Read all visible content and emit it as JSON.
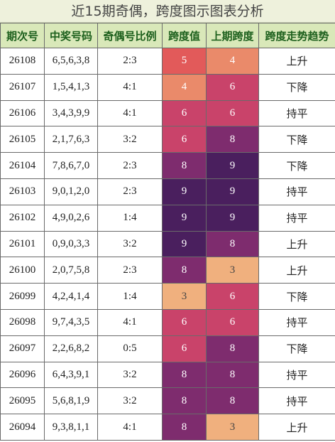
{
  "title": "近15期奇偶，跨度图示图表分析",
  "headers": [
    "期次号",
    "中奖号码",
    "奇偶号比例",
    "跨度值",
    "上期跨度",
    "跨度走势趋势"
  ],
  "colors": {
    "3": "#f0b07e",
    "4": "#ea8a6a",
    "5": "#e25a5a",
    "6": "#c9436a",
    "8": "#7e2c6e",
    "9": "#4a1f5e"
  },
  "rows": [
    {
      "period": "26108",
      "numbers": "6,5,6,3,8",
      "ratio": "2:3",
      "span": "5",
      "prev": "4",
      "trend": "上升"
    },
    {
      "period": "26107",
      "numbers": "1,5,4,1,3",
      "ratio": "4:1",
      "span": "4",
      "prev": "6",
      "trend": "下降"
    },
    {
      "period": "26106",
      "numbers": "3,4,3,9,9",
      "ratio": "4:1",
      "span": "6",
      "prev": "6",
      "trend": "持平"
    },
    {
      "period": "26105",
      "numbers": "2,1,7,6,3",
      "ratio": "3:2",
      "span": "6",
      "prev": "8",
      "trend": "下降"
    },
    {
      "period": "26104",
      "numbers": "7,8,6,7,0",
      "ratio": "2:3",
      "span": "8",
      "prev": "9",
      "trend": "下降"
    },
    {
      "period": "26103",
      "numbers": "9,0,1,2,0",
      "ratio": "2:3",
      "span": "9",
      "prev": "9",
      "trend": "持平"
    },
    {
      "period": "26102",
      "numbers": "4,9,0,2,6",
      "ratio": "1:4",
      "span": "9",
      "prev": "9",
      "trend": "持平"
    },
    {
      "period": "26101",
      "numbers": "0,9,0,3,3",
      "ratio": "3:2",
      "span": "9",
      "prev": "8",
      "trend": "上升"
    },
    {
      "period": "26100",
      "numbers": "2,0,7,5,8",
      "ratio": "2:3",
      "span": "8",
      "prev": "3",
      "trend": "上升"
    },
    {
      "period": "26099",
      "numbers": "4,2,4,1,4",
      "ratio": "1:4",
      "span": "3",
      "prev": "6",
      "trend": "下降"
    },
    {
      "period": "26098",
      "numbers": "9,7,4,3,5",
      "ratio": "4:1",
      "span": "6",
      "prev": "6",
      "trend": "持平"
    },
    {
      "period": "26097",
      "numbers": "2,2,6,8,2",
      "ratio": "0:5",
      "span": "6",
      "prev": "8",
      "trend": "下降"
    },
    {
      "period": "26096",
      "numbers": "6,4,3,9,1",
      "ratio": "3:2",
      "span": "8",
      "prev": "8",
      "trend": "持平"
    },
    {
      "period": "26095",
      "numbers": "5,6,8,1,9",
      "ratio": "3:2",
      "span": "8",
      "prev": "8",
      "trend": "持平"
    },
    {
      "period": "26094",
      "numbers": "9,3,8,1,1",
      "ratio": "4:1",
      "span": "8",
      "prev": "3",
      "trend": "上升"
    }
  ]
}
